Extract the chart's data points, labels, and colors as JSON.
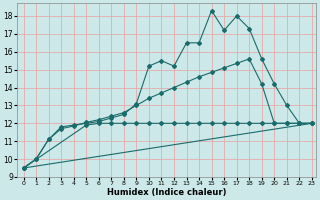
{
  "xlabel": "Humidex (Indice chaleur)",
  "bg_color": "#cce8e8",
  "grid_color": "#e8a0a0",
  "line_color": "#1a6b6b",
  "xlim": [
    -0.5,
    23.3
  ],
  "ylim": [
    9.0,
    18.7
  ],
  "xticks": [
    0,
    1,
    2,
    3,
    4,
    5,
    6,
    7,
    8,
    9,
    10,
    11,
    12,
    13,
    14,
    15,
    16,
    17,
    18,
    19,
    20,
    21,
    22,
    23
  ],
  "yticks": [
    9,
    10,
    11,
    12,
    13,
    14,
    15,
    16,
    17,
    18
  ],
  "line1_x": [
    0,
    1,
    2,
    3,
    4,
    5,
    6,
    7,
    8,
    9,
    10,
    11,
    12,
    13,
    14,
    15,
    16,
    17,
    18,
    19,
    20,
    21,
    22,
    23
  ],
  "line1_y": [
    9.5,
    10.0,
    11.1,
    11.8,
    11.9,
    12.0,
    12.1,
    12.3,
    12.5,
    13.1,
    15.2,
    15.5,
    15.2,
    16.5,
    16.5,
    18.3,
    17.2,
    18.0,
    17.3,
    15.6,
    14.2,
    13.0,
    12.0,
    12.0
  ],
  "line2_x": [
    0,
    1,
    2,
    3,
    4,
    5,
    6,
    7,
    8,
    9,
    10,
    11,
    12,
    13,
    14,
    15,
    16,
    17,
    18,
    19,
    20,
    21,
    22,
    23
  ],
  "line2_y": [
    9.5,
    10.0,
    11.1,
    11.7,
    11.85,
    12.05,
    12.2,
    12.4,
    12.6,
    13.0,
    13.4,
    13.7,
    14.0,
    14.3,
    14.6,
    14.85,
    15.1,
    15.35,
    15.6,
    14.2,
    12.0,
    12.0,
    12.0,
    12.0
  ],
  "line3_x": [
    0,
    5,
    6,
    7,
    8,
    9,
    10,
    11,
    12,
    13,
    14,
    15,
    16,
    17,
    18,
    19,
    20,
    21,
    22,
    23
  ],
  "line3_y": [
    9.5,
    11.9,
    12.0,
    12.0,
    12.0,
    12.0,
    12.0,
    12.0,
    12.0,
    12.0,
    12.0,
    12.0,
    12.0,
    12.0,
    12.0,
    12.0,
    12.0,
    12.0,
    12.0,
    12.0
  ],
  "line4_x": [
    0,
    23
  ],
  "line4_y": [
    9.5,
    12.0
  ]
}
